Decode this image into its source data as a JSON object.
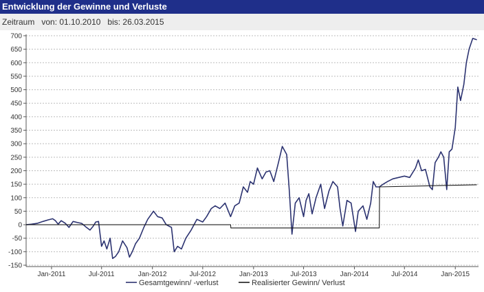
{
  "header": {
    "title": "Entwicklung der Gewinne und Verluste",
    "range_label": "Zeitraum",
    "from_text": "von: 01.10.2010",
    "to_text": "bis: 26.03.2015"
  },
  "colors": {
    "header_bg": "#1f2f8a",
    "series_total": "#2b3270",
    "series_realized": "#1a1a1a",
    "grid": "#bbbbbb"
  },
  "chart_data": {
    "type": "line",
    "title": "Entwicklung der Gewinne und Verluste",
    "xlabel": "",
    "ylabel": "",
    "xlim": [
      "2010-10-01",
      "2015-03-26"
    ],
    "ylim": [
      -150,
      700
    ],
    "y_ticks": [
      "700",
      "650",
      "600",
      "550",
      "500",
      "450",
      "400",
      "350",
      "300",
      "250",
      "200",
      "150",
      "100",
      "50",
      "0",
      "-50",
      "-100",
      "-150"
    ],
    "x_ticks": [
      "Jan-2011",
      "Jul-2011",
      "Jan-2012",
      "Jul-2012",
      "Jan-2013",
      "Jul-2013",
      "Jan-2014",
      "Jul-2014",
      "Jan-2015"
    ],
    "x_tick_dates": [
      "2011-01-01",
      "2011-07-01",
      "2012-01-01",
      "2012-07-01",
      "2013-01-01",
      "2013-07-01",
      "2014-01-01",
      "2014-07-01",
      "2015-01-01"
    ],
    "grid": "horizontal dashed",
    "legend_position": "bottom",
    "series": [
      {
        "name": "Gesamtgewinn/ -verlust",
        "points": [
          [
            "2010-10-01",
            0
          ],
          [
            "2010-10-20",
            2
          ],
          [
            "2010-11-10",
            5
          ],
          [
            "2010-12-01",
            12
          ],
          [
            "2010-12-20",
            18
          ],
          [
            "2011-01-05",
            22
          ],
          [
            "2011-01-15",
            15
          ],
          [
            "2011-01-25",
            2
          ],
          [
            "2011-02-05",
            15
          ],
          [
            "2011-02-20",
            5
          ],
          [
            "2011-03-05",
            -10
          ],
          [
            "2011-03-20",
            12
          ],
          [
            "2011-04-05",
            8
          ],
          [
            "2011-04-20",
            5
          ],
          [
            "2011-05-05",
            -8
          ],
          [
            "2011-05-20",
            -20
          ],
          [
            "2011-06-01",
            -5
          ],
          [
            "2011-06-10",
            10
          ],
          [
            "2011-06-20",
            12
          ],
          [
            "2011-07-01",
            -80
          ],
          [
            "2011-07-10",
            -60
          ],
          [
            "2011-07-20",
            -90
          ],
          [
            "2011-08-01",
            -50
          ],
          [
            "2011-08-10",
            -125
          ],
          [
            "2011-08-20",
            -118
          ],
          [
            "2011-09-01",
            -100
          ],
          [
            "2011-09-15",
            -60
          ],
          [
            "2011-10-01",
            -85
          ],
          [
            "2011-10-10",
            -120
          ],
          [
            "2011-10-20",
            -100
          ],
          [
            "2011-11-01",
            -70
          ],
          [
            "2011-11-15",
            -50
          ],
          [
            "2011-12-01",
            -10
          ],
          [
            "2011-12-15",
            20
          ],
          [
            "2012-01-05",
            50
          ],
          [
            "2012-01-20",
            30
          ],
          [
            "2012-02-05",
            25
          ],
          [
            "2012-02-20",
            0
          ],
          [
            "2012-03-10",
            -10
          ],
          [
            "2012-03-20",
            -100
          ],
          [
            "2012-04-01",
            -80
          ],
          [
            "2012-04-15",
            -90
          ],
          [
            "2012-05-01",
            -50
          ],
          [
            "2012-05-20",
            -20
          ],
          [
            "2012-06-10",
            20
          ],
          [
            "2012-07-01",
            10
          ],
          [
            "2012-07-15",
            30
          ],
          [
            "2012-08-01",
            60
          ],
          [
            "2012-08-15",
            70
          ],
          [
            "2012-09-01",
            60
          ],
          [
            "2012-09-20",
            80
          ],
          [
            "2012-10-10",
            30
          ],
          [
            "2012-10-25",
            70
          ],
          [
            "2012-11-10",
            80
          ],
          [
            "2012-11-25",
            140
          ],
          [
            "2012-12-10",
            120
          ],
          [
            "2012-12-20",
            160
          ],
          [
            "2013-01-01",
            150
          ],
          [
            "2013-01-15",
            210
          ],
          [
            "2013-02-01",
            170
          ],
          [
            "2013-02-15",
            195
          ],
          [
            "2013-03-01",
            200
          ],
          [
            "2013-03-15",
            160
          ],
          [
            "2013-04-01",
            230
          ],
          [
            "2013-04-15",
            290
          ],
          [
            "2013-05-01",
            260
          ],
          [
            "2013-05-10",
            130
          ],
          [
            "2013-05-20",
            -35
          ],
          [
            "2013-06-01",
            80
          ],
          [
            "2013-06-15",
            100
          ],
          [
            "2013-07-01",
            30
          ],
          [
            "2013-07-10",
            90
          ],
          [
            "2013-07-20",
            115
          ],
          [
            "2013-08-01",
            40
          ],
          [
            "2013-08-15",
            100
          ],
          [
            "2013-09-01",
            150
          ],
          [
            "2013-09-15",
            60
          ],
          [
            "2013-10-01",
            125
          ],
          [
            "2013-10-15",
            160
          ],
          [
            "2013-11-01",
            140
          ],
          [
            "2013-11-10",
            60
          ],
          [
            "2013-11-20",
            -5
          ],
          [
            "2013-12-05",
            90
          ],
          [
            "2013-12-20",
            80
          ],
          [
            "2014-01-05",
            -25
          ],
          [
            "2014-01-15",
            50
          ],
          [
            "2014-02-01",
            70
          ],
          [
            "2014-02-15",
            20
          ],
          [
            "2014-03-01",
            80
          ],
          [
            "2014-03-10",
            160
          ],
          [
            "2014-03-20",
            140
          ],
          [
            "2014-04-01",
            140
          ],
          [
            "2014-04-15",
            150
          ],
          [
            "2014-05-01",
            160
          ],
          [
            "2014-05-20",
            170
          ],
          [
            "2014-06-10",
            175
          ],
          [
            "2014-07-01",
            180
          ],
          [
            "2014-07-20",
            175
          ],
          [
            "2014-08-10",
            210
          ],
          [
            "2014-08-20",
            240
          ],
          [
            "2014-09-01",
            200
          ],
          [
            "2014-09-15",
            205
          ],
          [
            "2014-10-01",
            140
          ],
          [
            "2014-10-10",
            130
          ],
          [
            "2014-10-20",
            230
          ],
          [
            "2014-11-01",
            250
          ],
          [
            "2014-11-10",
            270
          ],
          [
            "2014-11-20",
            250
          ],
          [
            "2014-12-01",
            130
          ],
          [
            "2014-12-10",
            270
          ],
          [
            "2014-12-20",
            280
          ],
          [
            "2015-01-01",
            360
          ],
          [
            "2015-01-10",
            510
          ],
          [
            "2015-01-20",
            460
          ],
          [
            "2015-02-01",
            520
          ],
          [
            "2015-02-10",
            600
          ],
          [
            "2015-02-20",
            650
          ],
          [
            "2015-03-05",
            690
          ],
          [
            "2015-03-20",
            685
          ]
        ]
      },
      {
        "name": "Realisierter Gewinn/ Verlust",
        "points": [
          [
            "2010-10-01",
            0
          ],
          [
            "2012-10-10",
            0
          ],
          [
            "2012-10-11",
            -12
          ],
          [
            "2014-04-01",
            -12
          ],
          [
            "2014-04-02",
            140
          ],
          [
            "2015-03-20",
            148
          ]
        ]
      }
    ]
  }
}
